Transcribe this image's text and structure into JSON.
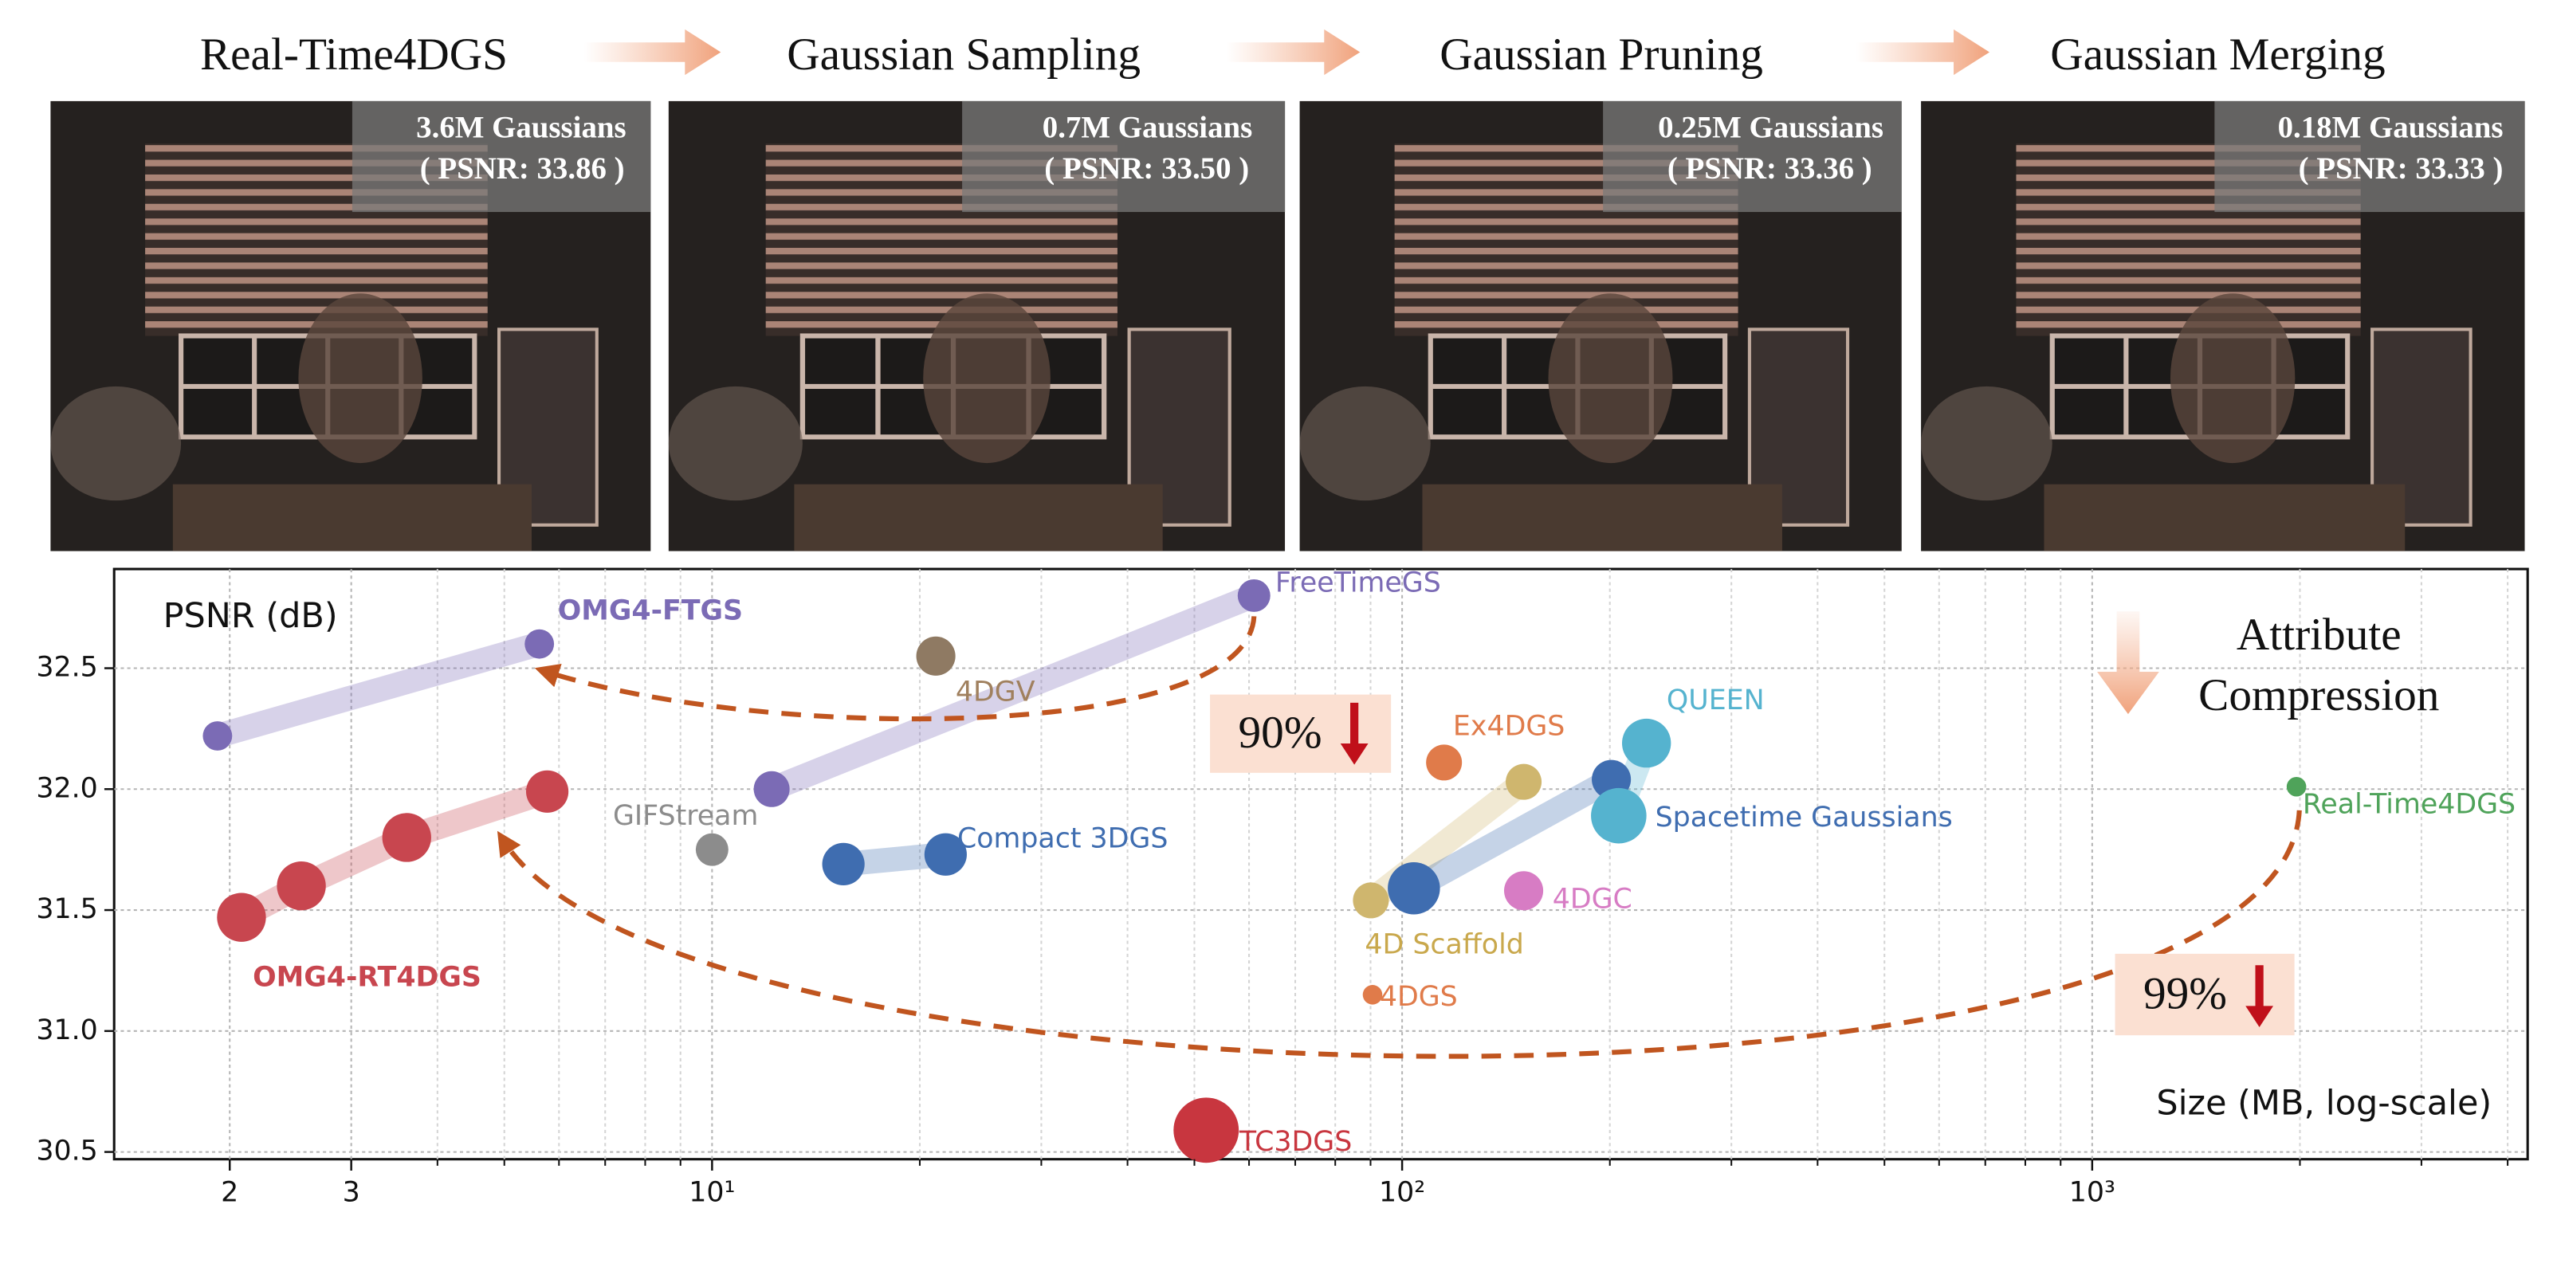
{
  "pipeline": {
    "stages": [
      {
        "title": "Real-Time4DGS",
        "gaussians": "3.6M Gaussians",
        "psnr": "( PSNR: 33.86 )"
      },
      {
        "title": "Gaussian Sampling",
        "gaussians": "0.7M Gaussians",
        "psnr": "( PSNR: 33.50 )"
      },
      {
        "title": "Gaussian Pruning",
        "gaussians": "0.25M Gaussians",
        "psnr": "( PSNR: 33.36 )"
      },
      {
        "title": "Gaussian Merging",
        "gaussians": "0.18M Gaussians",
        "psnr": "( PSNR: 33.33 )"
      }
    ]
  },
  "chart_data": {
    "type": "scatter",
    "y_label": "PSNR (dB)",
    "x_label": "Size (MB, log-scale)",
    "annotations": {
      "compression_1": "Attribute",
      "compression_2": "Compression",
      "reduction_1": "90%",
      "reduction_2": "99%"
    },
    "x_log_scale": true,
    "grid": true,
    "xlim": [
      1.36,
      4276
    ],
    "ylim": [
      30.47,
      32.91
    ],
    "xticks": [
      2,
      3,
      {
        "value": 10,
        "label": "10¹"
      },
      {
        "value": 100,
        "label": "10²"
      },
      {
        "value": 1000,
        "label": "10³"
      }
    ],
    "xminorticks": [
      4,
      5,
      6,
      7,
      8,
      9,
      20,
      30,
      40,
      50,
      60,
      70,
      80,
      90,
      200,
      300,
      400,
      500,
      600,
      700,
      800,
      900,
      2000,
      3000,
      4000
    ],
    "yticks": [
      30.5,
      {
        "value": 31,
        "label": "31.0"
      },
      31.5,
      {
        "value": 32,
        "label": "32.0"
      },
      32.5
    ],
    "series": [
      {
        "name": "OMG4-FTGS",
        "color": "#7b6bb5",
        "x": [
          1.92,
          5.62
        ],
        "values": [
          32.22,
          32.6
        ],
        "sizes": [
          9,
          9
        ]
      },
      {
        "name": "OMG4-RT4DGS",
        "color": "#c8464f",
        "x": [
          2.08,
          2.54,
          3.61,
          5.77
        ],
        "values": [
          31.47,
          31.6,
          31.8,
          31.99
        ],
        "sizes": [
          15,
          15,
          15,
          13
        ]
      },
      {
        "name": "FreeTimeGS",
        "color": "#7b6bb5",
        "x": [
          12.2,
          61
        ],
        "values": [
          32.0,
          32.8
        ],
        "sizes": [
          11,
          10
        ]
      },
      {
        "name": "4DGV",
        "color": "#8f7a63",
        "x": [
          21.1
        ],
        "values": [
          32.55
        ],
        "sizes": [
          12
        ]
      },
      {
        "name": "GIFStream",
        "color": "#8c8c8c",
        "x": [
          10
        ],
        "values": [
          31.75
        ],
        "sizes": [
          10
        ]
      },
      {
        "name": "Compact 3DGS",
        "color": "#3f6db0",
        "x": [
          15.5,
          21.8
        ],
        "values": [
          31.69,
          31.73
        ],
        "sizes": [
          13,
          13
        ]
      },
      {
        "name": "4D Scaffold",
        "color": "#cfb66e",
        "x": [
          90.1,
          150
        ],
        "values": [
          31.54,
          32.03
        ],
        "sizes": [
          11,
          11
        ]
      },
      {
        "name": "Spacetime Gaussians",
        "color": "#3f6db0",
        "x": [
          104,
          201
        ],
        "values": [
          31.59,
          32.04
        ],
        "sizes": [
          16,
          12
        ]
      },
      {
        "name": "QUEEN",
        "color": "#55b3cf",
        "x": [
          206,
          226
        ],
        "values": [
          31.89,
          32.19
        ],
        "sizes": [
          17,
          15
        ]
      },
      {
        "name": "Ex4DGS",
        "color": "#e07b4a",
        "x": [
          115
        ],
        "values": [
          32.11
        ],
        "sizes": [
          11
        ]
      },
      {
        "name": "4DGC",
        "color": "#d77cc4",
        "x": [
          150
        ],
        "values": [
          31.58
        ],
        "sizes": [
          12
        ]
      },
      {
        "name": "4DGS",
        "color": "#e07b4a",
        "x": [
          90.6
        ],
        "values": [
          31.15
        ],
        "sizes": [
          6
        ]
      },
      {
        "name": "TC3DGS",
        "color": "#c8363f",
        "x": [
          52
        ],
        "values": [
          30.59
        ],
        "sizes": [
          20
        ]
      },
      {
        "name": "Real-Time4DGS",
        "color": "#4fa35a",
        "x": [
          1977
        ],
        "values": [
          32.01
        ],
        "sizes": [
          6
        ]
      }
    ]
  }
}
